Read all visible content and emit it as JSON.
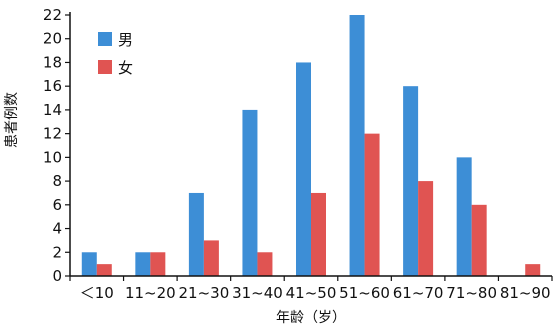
{
  "chart_data": {
    "type": "bar",
    "title": "",
    "xlabel": "年龄（岁）",
    "ylabel": "患者例数",
    "ylim": [
      0,
      22
    ],
    "yticks": [
      0,
      2,
      4,
      6,
      8,
      10,
      12,
      14,
      16,
      18,
      20,
      22
    ],
    "grid": false,
    "legend_position": "top-left",
    "categories": [
      "＜10",
      "11~20",
      "21~30",
      "31~40",
      "41~50",
      "51~60",
      "61~70",
      "71~80",
      "81~90"
    ],
    "series": [
      {
        "name": "男",
        "color": "#3d8ed6",
        "values": [
          2,
          2,
          7,
          14,
          18,
          22,
          16,
          10,
          0
        ]
      },
      {
        "name": "女",
        "color": "#e05452",
        "values": [
          1,
          2,
          3,
          2,
          7,
          12,
          8,
          6,
          1
        ]
      }
    ]
  }
}
